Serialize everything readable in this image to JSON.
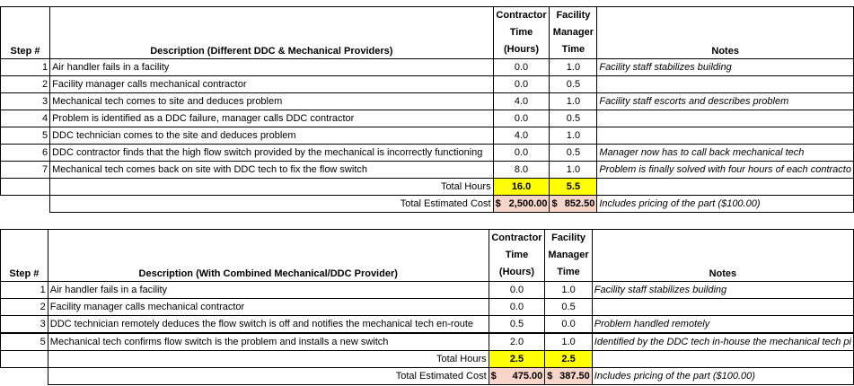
{
  "table1": {
    "header": {
      "step": "Step #",
      "description": "Description (Different DDC & Mechanical Providers)",
      "contractor": [
        "Contractor",
        "Time",
        "(Hours)"
      ],
      "facility": [
        "Facility",
        "Manager",
        "Time"
      ],
      "notes": "Notes"
    },
    "rows": [
      {
        "step": "1",
        "desc": "Air handler fails in a facility",
        "contractor": "0.0",
        "facility": "1.0",
        "note": "Facility staff stabilizes building"
      },
      {
        "step": "2",
        "desc": "Facility manager calls mechanical contractor",
        "contractor": "0.0",
        "facility": "0.5",
        "note": ""
      },
      {
        "step": "3",
        "desc": "Mechanical tech comes to site and deduces problem",
        "contractor": "4.0",
        "facility": "1.0",
        "note": "Facility staff escorts and describes problem"
      },
      {
        "step": "4",
        "desc": "Problem is identified as a DDC failure, manager calls DDC contractor",
        "contractor": "0.0",
        "facility": "0.5",
        "note": ""
      },
      {
        "step": "5",
        "desc": "DDC technician comes to the site and deduces problem",
        "contractor": "4.0",
        "facility": "1.0",
        "note": ""
      },
      {
        "step": "6",
        "desc": "DDC contractor finds that the high flow switch provided by the mechanical is incorrectly functioning",
        "contractor": "0.0",
        "facility": "0.5",
        "note": "Manager now has to call back mechanical tech"
      },
      {
        "step": "7",
        "desc": "Mechanical tech comes back on site with DDC tech to fix the flow switch",
        "contractor": "8.0",
        "facility": "1.0",
        "note": "Problem is finally solved with four hours of each contracto"
      }
    ],
    "total_hours_label": "Total Hours",
    "total_hours_contractor": "16.0",
    "total_hours_facility": "5.5",
    "total_cost_label": "Total Estimated Cost",
    "cost_contractor_sym": "$",
    "cost_contractor": "2,500.00",
    "cost_facility_sym": "$",
    "cost_facility": "852.50",
    "cost_note": "Includes pricing of the part ($100.00)"
  },
  "table2": {
    "header": {
      "step": "Step #",
      "description": "Description (With Combined Mechanical/DDC Provider)",
      "contractor": [
        "Contractor",
        "Time",
        "(Hours)"
      ],
      "facility": [
        "Facility",
        "Manager",
        "Time"
      ],
      "notes": "Notes"
    },
    "rows": [
      {
        "step": "1",
        "desc": "Air handler fails in a facility",
        "contractor": "0.0",
        "facility": "1.0",
        "note": "Facility staff stabilizes building"
      },
      {
        "step": "2",
        "desc": "Facility manager calls mechanical contractor",
        "contractor": "0.0",
        "facility": "0.5",
        "note": ""
      },
      {
        "step": "3",
        "desc": "DDC technician remotely deduces the flow switch is off and notifies the mechanical tech en-route",
        "contractor": "0.5",
        "facility": "0.0",
        "note": "Problem handled remotely"
      },
      {
        "step": "5",
        "desc": "Mechanical tech confirms flow switch is the problem and installs a new switch",
        "contractor": "2.0",
        "facility": "1.0",
        "note": "Identified by the DDC tech in-house the mechanical tech pi"
      }
    ],
    "total_hours_label": "Total Hours",
    "total_hours_contractor": "2.5",
    "total_hours_facility": "2.5",
    "total_cost_label": "Total Estimated Cost",
    "cost_contractor_sym": "$",
    "cost_contractor": "475.00",
    "cost_facility_sym": "$",
    "cost_facility": "387.50",
    "cost_note": "Includes pricing of the part ($100.00)"
  },
  "colors": {
    "highlight_yellow": "#ffff00",
    "highlight_pink": "#f7d5c8"
  }
}
